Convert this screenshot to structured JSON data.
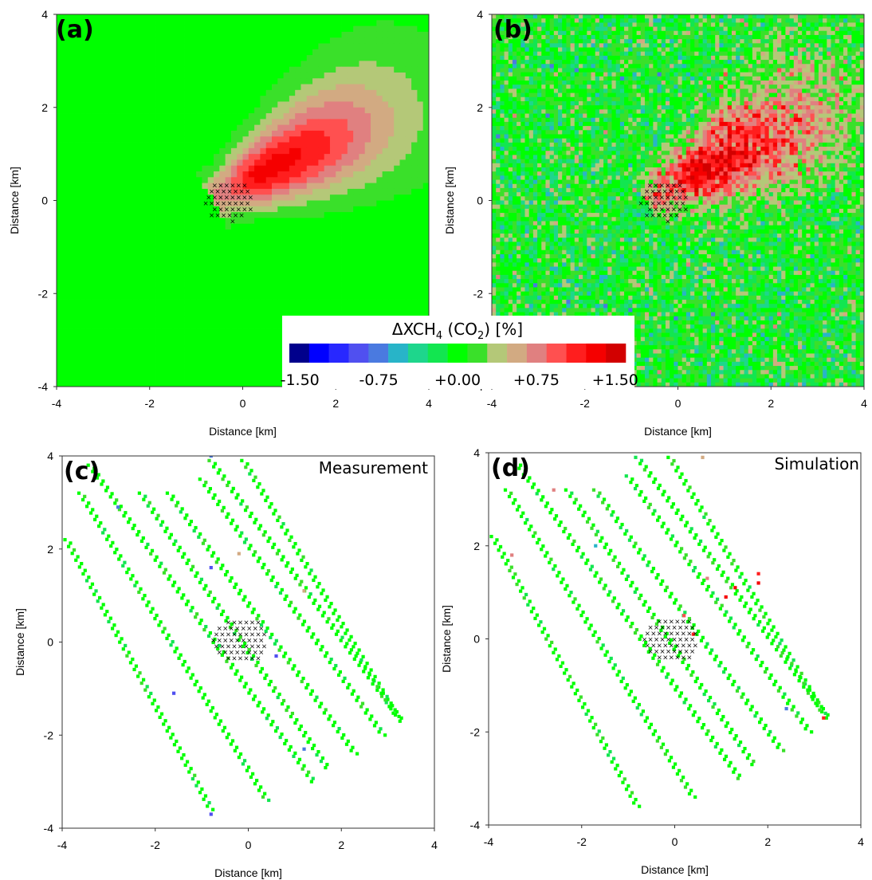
{
  "colorbar": {
    "title_prefix": "ΔXCH",
    "title_sub1": "4",
    "title_middle": " (CO",
    "title_sub2": "2",
    "title_suffix": ") [%]",
    "tick_labels": [
      "-1.50",
      "-0.75",
      "+0.00",
      "+0.75",
      "+1.50"
    ],
    "tick_values": [
      -1.5,
      -0.75,
      0.0,
      0.75,
      1.5
    ],
    "vmin": -1.6,
    "vmax": 1.6,
    "colors": [
      "#00008c",
      "#0000ff",
      "#2828ff",
      "#5050f0",
      "#4a7ae0",
      "#28b4c8",
      "#1ed68c",
      "#12e650",
      "#00ff00",
      "#3ae02a",
      "#b4c878",
      "#d2aa82",
      "#e08080",
      "#ff5050",
      "#ff1e1e",
      "#f50000",
      "#d20000"
    ]
  },
  "chart_data": [
    {
      "type": "heatmap",
      "panel": "a",
      "panel_label": "(a)",
      "title": "",
      "xlabel": "Distance [km]",
      "ylabel": "Distance [km]",
      "xlim": [
        -4,
        4
      ],
      "ylim": [
        -4,
        4
      ],
      "xticks": [
        "-4",
        "-2",
        "0",
        "2",
        "4"
      ],
      "yticks": [
        "-4",
        "-2",
        "0",
        "2",
        "4"
      ],
      "grid": false,
      "field_description": "modelled plume enhancement",
      "plume": {
        "source_x": -0.3,
        "source_y": 0.2,
        "direction_deg": 28,
        "peak_percent": 1.3,
        "background_percent": 0.0
      },
      "source_region": {
        "center_x": -0.3,
        "center_y": 0.0,
        "radius_km": 0.45
      }
    },
    {
      "type": "heatmap",
      "panel": "b",
      "panel_label": "(b)",
      "title": "",
      "xlabel": "Distance [km]",
      "ylabel": "Distance [km]",
      "xlim": [
        -4,
        4
      ],
      "ylim": [
        -4,
        4
      ],
      "xticks": [
        "-4",
        "-2",
        "0",
        "2",
        "4"
      ],
      "yticks": [
        "-4",
        "-2",
        "0",
        "2",
        "4"
      ],
      "grid": false,
      "field_description": "plume with noise",
      "plume": {
        "source_x": -0.3,
        "source_y": 0.2,
        "direction_deg": 28,
        "peak_percent": 1.3,
        "noise_percent": 0.35
      },
      "source_region": {
        "center_x": -0.3,
        "center_y": 0.0,
        "radius_km": 0.45
      }
    },
    {
      "type": "scatter",
      "panel": "c",
      "panel_label": "(c)",
      "title": "Measurement",
      "xlabel": "Distance [km]",
      "ylabel": "Distance [km]",
      "xlim": [
        -4,
        4
      ],
      "ylim": [
        -4,
        4
      ],
      "xticks": [
        "-4",
        "-2",
        "0",
        "2",
        "4"
      ],
      "yticks": [
        "-4",
        "-2",
        "0",
        "2",
        "4"
      ],
      "grid": false,
      "tracks": [
        {
          "x0": -3.9,
          "y0": 2.2,
          "x1": -0.8,
          "y1": -3.6
        },
        {
          "x0": -3.6,
          "y0": 3.2,
          "x1": 0.4,
          "y1": -3.4
        },
        {
          "x0": -3.4,
          "y0": 3.8,
          "x1": 1.4,
          "y1": -3.0
        },
        {
          "x0": -2.3,
          "y0": 3.2,
          "x1": 1.7,
          "y1": -2.7
        },
        {
          "x0": -1.7,
          "y0": 3.2,
          "x1": 2.3,
          "y1": -2.4
        },
        {
          "x0": -1.0,
          "y0": 3.5,
          "x1": 2.9,
          "y1": -2.0
        },
        {
          "x0": -0.8,
          "y0": 3.9,
          "x1": 3.3,
          "y1": -1.7
        },
        {
          "x0": -0.1,
          "y0": 3.9,
          "x1": 3.2,
          "y1": -1.6
        }
      ],
      "anomalies": [
        {
          "x": -2.8,
          "y": 2.9,
          "value": -0.8
        },
        {
          "x": -0.8,
          "y": -3.7,
          "value": -1.0
        },
        {
          "x": -1.6,
          "y": -1.1,
          "value": -0.9
        },
        {
          "x": -0.8,
          "y": 1.6,
          "value": -1.0
        },
        {
          "x": 0.6,
          "y": -0.3,
          "value": -1.0
        },
        {
          "x": 1.2,
          "y": -2.3,
          "value": -0.8
        },
        {
          "x": -0.2,
          "y": 1.9,
          "value": 0.5
        },
        {
          "x": 1.2,
          "y": 1.1,
          "value": 0.5
        },
        {
          "x": -0.8,
          "y": 4.0,
          "value": -0.8
        }
      ],
      "source_region": {
        "center_x": -0.2,
        "center_y": 0.05,
        "radius_km": 0.5
      }
    },
    {
      "type": "scatter",
      "panel": "d",
      "panel_label": "(d)",
      "title": "Simulation",
      "xlabel": "Distance [km]",
      "ylabel": "Distance [km]",
      "xlim": [
        -4,
        4
      ],
      "ylim": [
        -4,
        4
      ],
      "xticks": [
        "-4",
        "-2",
        "0",
        "2",
        "4"
      ],
      "yticks": [
        "-4",
        "-2",
        "0",
        "2",
        "4"
      ],
      "grid": false,
      "tracks": [
        {
          "x0": -3.9,
          "y0": 2.2,
          "x1": -0.8,
          "y1": -3.6
        },
        {
          "x0": -3.6,
          "y0": 3.2,
          "x1": 0.4,
          "y1": -3.4
        },
        {
          "x0": -3.4,
          "y0": 3.8,
          "x1": 1.4,
          "y1": -3.0
        },
        {
          "x0": -2.3,
          "y0": 3.2,
          "x1": 1.7,
          "y1": -2.7
        },
        {
          "x0": -1.7,
          "y0": 3.2,
          "x1": 2.3,
          "y1": -2.4
        },
        {
          "x0": -1.0,
          "y0": 3.5,
          "x1": 2.9,
          "y1": -2.0
        },
        {
          "x0": -0.8,
          "y0": 3.9,
          "x1": 3.3,
          "y1": -1.7
        },
        {
          "x0": -0.1,
          "y0": 3.9,
          "x1": 3.2,
          "y1": -1.6
        }
      ],
      "anomalies": [
        {
          "x": 0.7,
          "y": 1.3,
          "value": 0.8
        },
        {
          "x": 1.1,
          "y": 0.9,
          "value": 1.4
        },
        {
          "x": 1.3,
          "y": 1.1,
          "value": 1.3
        },
        {
          "x": 1.8,
          "y": 1.4,
          "value": 1.2
        },
        {
          "x": 1.8,
          "y": 1.2,
          "value": 1.4
        },
        {
          "x": 0.2,
          "y": 0.5,
          "value": 0.9
        },
        {
          "x": 0.4,
          "y": 0.1,
          "value": 1.2
        },
        {
          "x": 3.2,
          "y": -1.7,
          "value": 1.1
        },
        {
          "x": -2.6,
          "y": 3.2,
          "value": 0.8
        },
        {
          "x": -3.5,
          "y": 1.8,
          "value": 0.8
        },
        {
          "x": 0.6,
          "y": 3.9,
          "value": 0.6
        },
        {
          "x": 2.4,
          "y": -1.5,
          "value": -0.8
        },
        {
          "x": -1.7,
          "y": 2.0,
          "value": -0.6
        }
      ],
      "source_region": {
        "center_x": -0.1,
        "center_y": 0.0,
        "radius_km": 0.5
      }
    }
  ]
}
